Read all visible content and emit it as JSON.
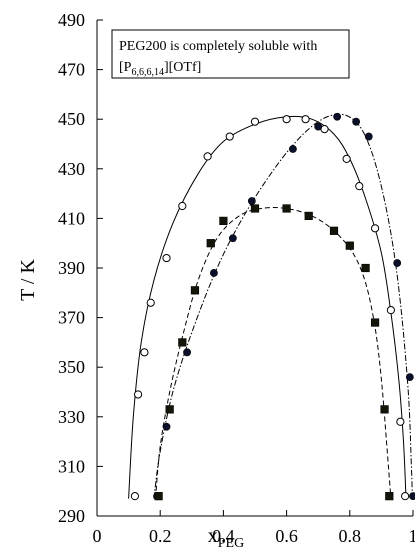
{
  "chart_data": {
    "type": "scatter",
    "xlabel": "x",
    "xlabel_subscript": "PEG",
    "ylabel": "T / K",
    "xlim": [
      0,
      1
    ],
    "ylim": [
      290,
      490
    ],
    "xticks": [
      "0",
      "0.2",
      "0.4",
      "0.6",
      "0.8",
      "1"
    ],
    "xtick_values": [
      0,
      0.2,
      0.4,
      0.6,
      0.8,
      1
    ],
    "yticks": [
      "290",
      "310",
      "330",
      "350",
      "370",
      "390",
      "410",
      "430",
      "450",
      "470",
      "490"
    ],
    "ytick_values": [
      290,
      310,
      330,
      350,
      370,
      390,
      410,
      430,
      450,
      470,
      490
    ],
    "annotation": {
      "line1": "PEG200 is completely soluble with",
      "line2_prefix": "[P",
      "line2_subscript": "6,6,6,14",
      "line2_suffix": "][OTf]"
    },
    "grid": false,
    "legend": "none",
    "series": [
      {
        "marker": "open-circle",
        "line": "solid",
        "points": [
          [
            0.12,
            298
          ],
          [
            0.13,
            339
          ],
          [
            0.15,
            356
          ],
          [
            0.17,
            376
          ],
          [
            0.22,
            394
          ],
          [
            0.27,
            415
          ],
          [
            0.35,
            435
          ],
          [
            0.42,
            443
          ],
          [
            0.5,
            449
          ],
          [
            0.6,
            450
          ],
          [
            0.66,
            450
          ],
          [
            0.72,
            446
          ],
          [
            0.79,
            434
          ],
          [
            0.83,
            423
          ],
          [
            0.88,
            406
          ],
          [
            0.93,
            373
          ],
          [
            0.96,
            328
          ],
          [
            0.975,
            298
          ]
        ]
      },
      {
        "marker": "filled-circle",
        "line": "dash-dot",
        "points": [
          [
            0.19,
            298
          ],
          [
            0.22,
            326
          ],
          [
            0.285,
            356
          ],
          [
            0.37,
            388
          ],
          [
            0.43,
            402
          ],
          [
            0.49,
            417
          ],
          [
            0.62,
            438
          ],
          [
            0.7,
            447
          ],
          [
            0.76,
            451
          ],
          [
            0.82,
            449
          ],
          [
            0.86,
            443
          ],
          [
            0.95,
            392
          ],
          [
            0.99,
            346
          ],
          [
            1.0,
            298
          ]
        ]
      },
      {
        "marker": "filled-square",
        "line": "dashed",
        "points": [
          [
            0.195,
            298
          ],
          [
            0.23,
            333
          ],
          [
            0.27,
            360
          ],
          [
            0.31,
            381
          ],
          [
            0.36,
            400
          ],
          [
            0.4,
            409
          ],
          [
            0.5,
            414
          ],
          [
            0.6,
            414
          ],
          [
            0.67,
            411
          ],
          [
            0.75,
            405
          ],
          [
            0.8,
            399
          ],
          [
            0.85,
            390
          ],
          [
            0.88,
            368
          ],
          [
            0.91,
            333
          ],
          [
            0.925,
            298
          ]
        ]
      }
    ],
    "curves": [
      {
        "style": "solid",
        "points": [
          [
            0.1,
            297
          ],
          [
            0.115,
            330
          ],
          [
            0.14,
            360
          ],
          [
            0.18,
            385
          ],
          [
            0.24,
            408
          ],
          [
            0.32,
            428
          ],
          [
            0.4,
            441
          ],
          [
            0.5,
            448
          ],
          [
            0.6,
            451
          ],
          [
            0.68,
            450
          ],
          [
            0.75,
            444
          ],
          [
            0.8,
            434
          ],
          [
            0.85,
            418
          ],
          [
            0.9,
            396
          ],
          [
            0.93,
            372
          ],
          [
            0.955,
            345
          ],
          [
            0.97,
            320
          ],
          [
            0.978,
            297
          ]
        ]
      },
      {
        "style": "dash-dot",
        "points": [
          [
            0.18,
            297
          ],
          [
            0.2,
            316
          ],
          [
            0.24,
            340
          ],
          [
            0.3,
            364
          ],
          [
            0.38,
            390
          ],
          [
            0.46,
            410
          ],
          [
            0.55,
            428
          ],
          [
            0.63,
            441
          ],
          [
            0.7,
            449
          ],
          [
            0.76,
            452
          ],
          [
            0.81,
            450
          ],
          [
            0.85,
            443
          ],
          [
            0.89,
            428
          ],
          [
            0.93,
            404
          ],
          [
            0.96,
            376
          ],
          [
            0.985,
            340
          ],
          [
            0.995,
            310
          ],
          [
            0.998,
            297
          ]
        ]
      },
      {
        "style": "dashed",
        "points": [
          [
            0.185,
            297
          ],
          [
            0.2,
            318
          ],
          [
            0.23,
            340
          ],
          [
            0.27,
            362
          ],
          [
            0.32,
            385
          ],
          [
            0.38,
            402
          ],
          [
            0.45,
            411
          ],
          [
            0.52,
            414
          ],
          [
            0.6,
            414
          ],
          [
            0.68,
            411
          ],
          [
            0.75,
            405
          ],
          [
            0.81,
            396
          ],
          [
            0.85,
            384
          ],
          [
            0.88,
            366
          ],
          [
            0.9,
            345
          ],
          [
            0.915,
            322
          ],
          [
            0.93,
            297
          ]
        ]
      }
    ]
  }
}
